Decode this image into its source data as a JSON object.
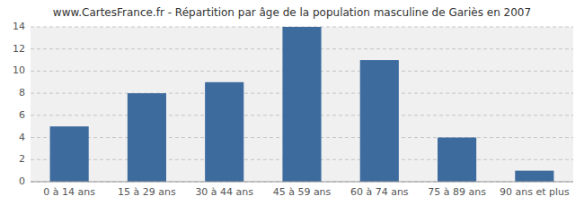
{
  "chart_data": {
    "type": "bar",
    "title": "www.CartesFrance.fr - Répartition par âge de la population masculine de Gariès en 2007",
    "categories": [
      "0 à 14 ans",
      "15 à 29 ans",
      "30 à 44 ans",
      "45 à 59 ans",
      "60 à 74 ans",
      "75 à 89 ans",
      "90 ans et plus"
    ],
    "values": [
      5,
      8,
      9,
      14,
      11,
      4,
      1
    ],
    "color": "#3d6b9e",
    "ylim": [
      0,
      14
    ],
    "yticks": [
      0,
      2,
      4,
      6,
      8,
      10,
      12,
      14
    ],
    "grid": true
  }
}
